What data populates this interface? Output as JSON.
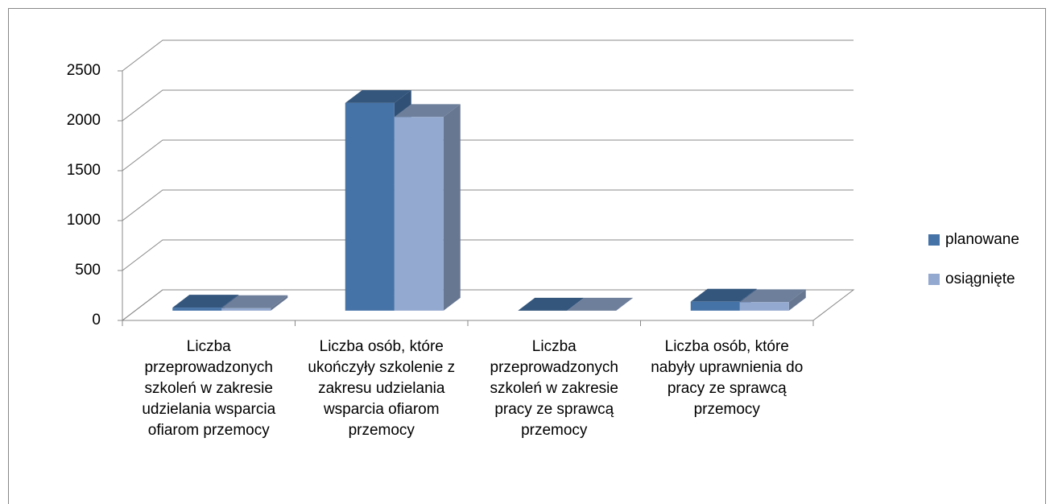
{
  "chart_data": {
    "type": "bar3d",
    "categories": [
      "Liczba przeprowadzonych szkoleń w zakresie udzielania wsparcia ofiarom przemocy",
      "Liczba osób, które ukończyły szkolenie z zakresu udzielania wsparcia ofiarom przemocy",
      "Liczba przeprowadzonych szkoleń w zakresie pracy ze sprawcą przemocy",
      "Liczba osób, które nabyły uprawnienia do pracy ze sprawcą przemocy"
    ],
    "series": [
      {
        "name": "planowane",
        "color": "#4572a7",
        "values": [
          30,
          2080,
          0,
          90
        ]
      },
      {
        "name": "osiągnięte",
        "color": "#93a9cf",
        "values": [
          25,
          1940,
          0,
          85
        ]
      }
    ],
    "ylim": [
      0,
      2500
    ],
    "yticks": [
      0,
      500,
      1000,
      1500,
      2000,
      2500
    ],
    "grid": true,
    "legend": "right"
  }
}
